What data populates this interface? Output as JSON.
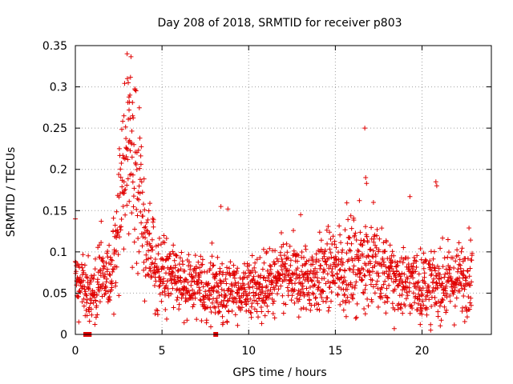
{
  "chart_data": {
    "type": "scatter",
    "title": "Day 208 of 2018, SRMTID for receiver p803",
    "xlabel": "GPS time / hours",
    "ylabel": "SRMTID / TECUs",
    "xlim": [
      0,
      24
    ],
    "ylim": [
      0,
      0.35
    ],
    "x_ticks": [
      0,
      5,
      10,
      15,
      20
    ],
    "y_ticks": [
      0,
      0.05,
      0.1,
      0.15,
      0.2,
      0.25,
      0.3,
      0.35
    ],
    "x_tick_labels": [
      "0",
      "5",
      "10",
      "15",
      "20"
    ],
    "y_tick_labels": [
      "0",
      "0.05",
      "0.1",
      "0.15",
      "0.2",
      "0.25",
      "0.3",
      "0.35"
    ],
    "grid": true,
    "marker": "+",
    "color": "#e00000",
    "series": [
      {
        "name": "SRMTID",
        "profile": [
          [
            0.0,
            0.06
          ],
          [
            0.3,
            0.07
          ],
          [
            0.6,
            0.055
          ],
          [
            0.9,
            0.05
          ],
          [
            1.2,
            0.06
          ],
          [
            1.5,
            0.075
          ],
          [
            1.8,
            0.06
          ],
          [
            2.1,
            0.08
          ],
          [
            2.4,
            0.12
          ],
          [
            2.7,
            0.18
          ],
          [
            3.0,
            0.24
          ],
          [
            3.3,
            0.21
          ],
          [
            3.6,
            0.17
          ],
          [
            3.9,
            0.13
          ],
          [
            4.2,
            0.1
          ],
          [
            4.6,
            0.085
          ],
          [
            5.0,
            0.075
          ],
          [
            6.0,
            0.065
          ],
          [
            7.0,
            0.058
          ],
          [
            8.0,
            0.055
          ],
          [
            9.0,
            0.052
          ],
          [
            10.0,
            0.055
          ],
          [
            11.0,
            0.058
          ],
          [
            12.0,
            0.07
          ],
          [
            13.0,
            0.065
          ],
          [
            14.0,
            0.07
          ],
          [
            15.0,
            0.08
          ],
          [
            16.0,
            0.085
          ],
          [
            17.0,
            0.09
          ],
          [
            18.0,
            0.07
          ],
          [
            19.0,
            0.065
          ],
          [
            20.0,
            0.06
          ],
          [
            21.0,
            0.06
          ],
          [
            22.0,
            0.065
          ],
          [
            22.9,
            0.075
          ]
        ],
        "outliers": [
          [
            3.0,
            0.31
          ],
          [
            3.05,
            0.305
          ],
          [
            3.15,
            0.29
          ],
          [
            3.1,
            0.272
          ],
          [
            2.8,
            0.265
          ],
          [
            3.3,
            0.265
          ],
          [
            8.4,
            0.155
          ],
          [
            8.8,
            0.152
          ],
          [
            16.7,
            0.25
          ],
          [
            16.75,
            0.19
          ],
          [
            16.8,
            0.183
          ],
          [
            20.8,
            0.185
          ],
          [
            20.85,
            0.18
          ],
          [
            19.3,
            0.167
          ],
          [
            13.0,
            0.145
          ],
          [
            17.2,
            0.16
          ],
          [
            18.4,
            0.007
          ],
          [
            19.9,
            0.012
          ],
          [
            20.5,
            0.005
          ],
          [
            0.0,
            0.14
          ],
          [
            0.2,
            0.015
          ],
          [
            4.6,
            0.025
          ],
          [
            8.5,
            0.012
          ],
          [
            11.5,
            0.02
          ]
        ],
        "flags": [
          [
            0.6,
            0
          ],
          [
            0.8,
            0
          ],
          [
            8.1,
            0
          ]
        ]
      }
    ]
  }
}
